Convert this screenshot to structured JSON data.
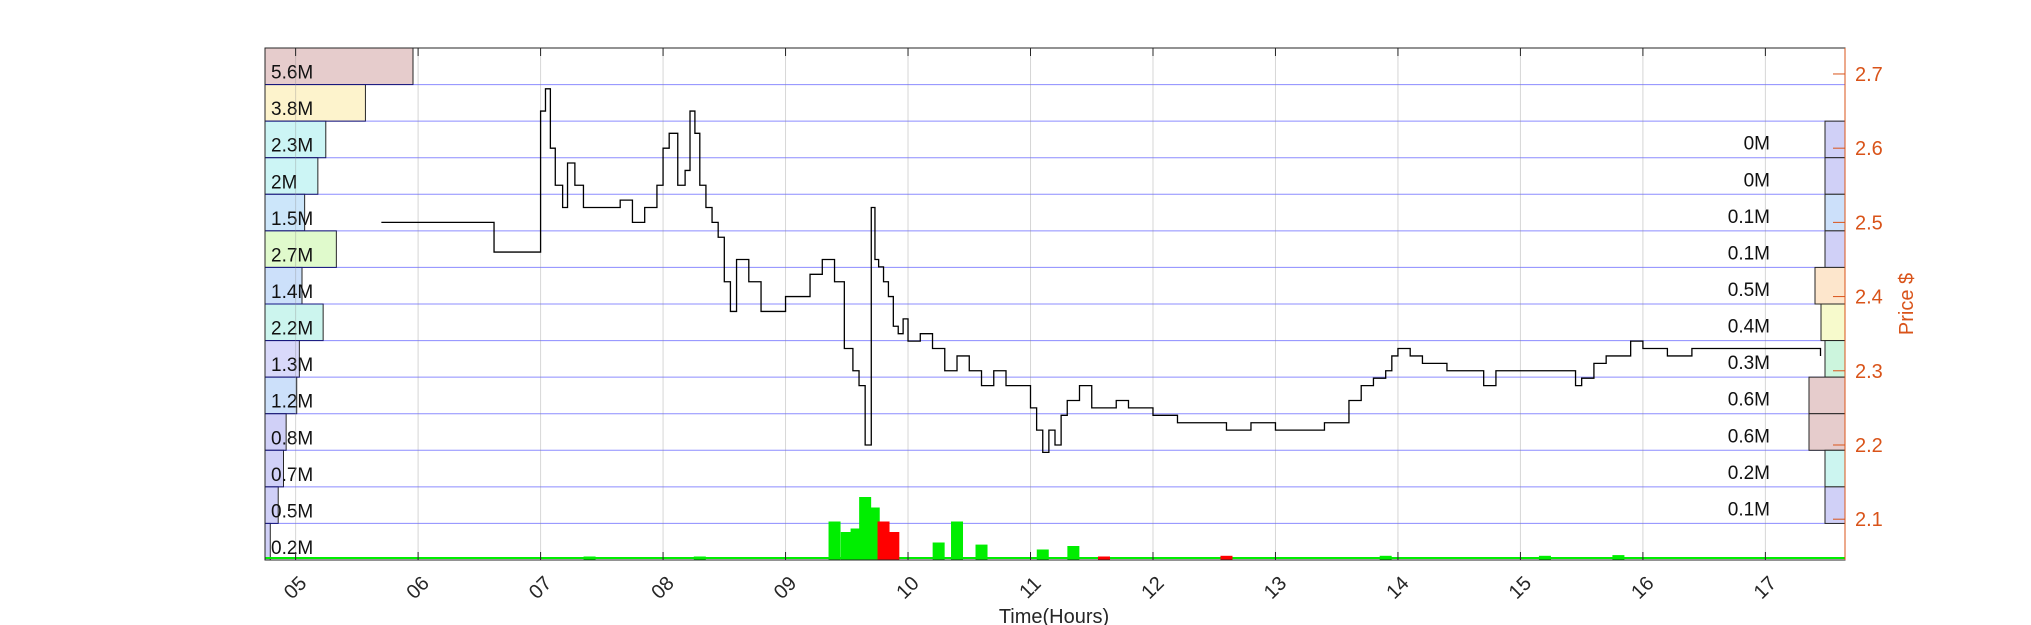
{
  "chart_data": {
    "type": "line",
    "title": "",
    "xlabel": "Time(Hours)",
    "ylabel": "Price $",
    "x_ticks": [
      "05",
      "06",
      "07",
      "08",
      "09",
      "10",
      "11",
      "12",
      "13",
      "14",
      "15",
      "16",
      "17"
    ],
    "y_ticks": [
      "2.1",
      "2.2",
      "2.3",
      "2.4",
      "2.5",
      "2.6",
      "2.7"
    ],
    "xlim": [
      4.75,
      17.65
    ],
    "ylim": [
      2.045,
      2.735
    ],
    "grid": true,
    "colors": {
      "price_line": "#000000",
      "axis_right": "#d95319",
      "grid": "#0000ff",
      "volume_up": "#00ee00",
      "volume_down": "#ff0000"
    },
    "series": [
      {
        "x": [
          5.7,
          5.9,
          6.2,
          6.45,
          6.62,
          6.68,
          6.72,
          6.8,
          6.95,
          7.0,
          7.04,
          7.08,
          7.12,
          7.18,
          7.22,
          7.28,
          7.35,
          7.45,
          7.55,
          7.65,
          7.75,
          7.85,
          7.95,
          8.0,
          8.05,
          8.12,
          8.18,
          8.22,
          8.26,
          8.3,
          8.35,
          8.4,
          8.45,
          8.5,
          8.55,
          8.6,
          8.7,
          8.8,
          8.9,
          9.0,
          9.1,
          9.2,
          9.3,
          9.4,
          9.48,
          9.55,
          9.6,
          9.65,
          9.7,
          9.73,
          9.76,
          9.8,
          9.84,
          9.88,
          9.92,
          9.96,
          10.0,
          10.05,
          10.1,
          10.2,
          10.3,
          10.4,
          10.5,
          10.6,
          10.7,
          10.8,
          10.9,
          11.0,
          11.05,
          11.1,
          11.15,
          11.2,
          11.25,
          11.3,
          11.4,
          11.5,
          11.6,
          11.7,
          11.8,
          11.9,
          12.0,
          12.2,
          12.4,
          12.6,
          12.8,
          13.0,
          13.2,
          13.4,
          13.5,
          13.6,
          13.7,
          13.8,
          13.9,
          13.95,
          14.0,
          14.1,
          14.2,
          14.4,
          14.6,
          14.7,
          14.8,
          15.0,
          15.2,
          15.4,
          15.45,
          15.5,
          15.6,
          15.7,
          15.8,
          15.9,
          16.0,
          16.2,
          16.4,
          16.5,
          16.8,
          17.0,
          17.3,
          17.45
        ],
        "y": [
          2.5,
          2.5,
          2.5,
          2.5,
          2.46,
          2.46,
          2.46,
          2.46,
          2.46,
          2.65,
          2.68,
          2.6,
          2.55,
          2.52,
          2.58,
          2.55,
          2.52,
          2.52,
          2.52,
          2.53,
          2.5,
          2.52,
          2.55,
          2.6,
          2.62,
          2.55,
          2.57,
          2.65,
          2.62,
          2.55,
          2.52,
          2.5,
          2.48,
          2.42,
          2.38,
          2.45,
          2.42,
          2.38,
          2.38,
          2.4,
          2.4,
          2.43,
          2.45,
          2.42,
          2.33,
          2.3,
          2.28,
          2.2,
          2.52,
          2.45,
          2.44,
          2.42,
          2.4,
          2.36,
          2.35,
          2.37,
          2.34,
          2.34,
          2.35,
          2.33,
          2.3,
          2.32,
          2.3,
          2.28,
          2.3,
          2.28,
          2.28,
          2.25,
          2.22,
          2.19,
          2.22,
          2.2,
          2.24,
          2.26,
          2.28,
          2.25,
          2.25,
          2.26,
          2.25,
          2.25,
          2.24,
          2.23,
          2.23,
          2.22,
          2.23,
          2.22,
          2.22,
          2.23,
          2.23,
          2.26,
          2.28,
          2.29,
          2.3,
          2.32,
          2.33,
          2.32,
          2.31,
          2.3,
          2.3,
          2.28,
          2.3,
          2.3,
          2.3,
          2.3,
          2.28,
          2.29,
          2.31,
          2.32,
          2.32,
          2.34,
          2.33,
          2.32,
          2.33,
          2.33,
          2.33,
          2.33,
          2.33,
          2.32
        ]
      }
    ],
    "volume_profile_left": {
      "labels": [
        "5.6M",
        "3.8M",
        "2.3M",
        "2M",
        "1.5M",
        "2.7M",
        "1.4M",
        "2.2M",
        "1.3M",
        "1.2M",
        "0.8M",
        "0.7M",
        "0.5M",
        "0.2M"
      ],
      "values": [
        5.6,
        3.8,
        2.3,
        2.0,
        1.5,
        2.7,
        1.4,
        2.2,
        1.3,
        1.2,
        0.8,
        0.7,
        0.5,
        0.2
      ],
      "colors": [
        "#e6cccc",
        "#fdf3cc",
        "#ccf5f5",
        "#ccf5f5",
        "#cce6fa",
        "#e0facc",
        "#cce0fa",
        "#ccf5ee",
        "#d9d9fa",
        "#cce0fa",
        "#d0d0f7",
        "#d0d0f7",
        "#d0d0f7",
        "#d0d0f7"
      ]
    },
    "volume_profile_right": {
      "labels": [
        "0M",
        "0M",
        "0.1M",
        "0.1M",
        "0.5M",
        "0.4M",
        "0.3M",
        "0.6M",
        "0.6M",
        "0.2M",
        "0.1M"
      ],
      "values": [
        0.02,
        0.02,
        0.1,
        0.1,
        0.5,
        0.4,
        0.3,
        0.6,
        0.6,
        0.2,
        0.1
      ],
      "colors": [
        "#d0d0f7",
        "#d0d0f7",
        "#cce0fa",
        "#d0d0f7",
        "#fde6cc",
        "#f7facc",
        "#ccf5dd",
        "#e6cccc",
        "#e6cccc",
        "#ccf5f0",
        "#d0d0f7"
      ]
    },
    "volume_bars": [
      {
        "x": 9.4,
        "v": 0.55,
        "dir": "up"
      },
      {
        "x": 9.5,
        "v": 0.4,
        "dir": "up"
      },
      {
        "x": 9.58,
        "v": 0.45,
        "dir": "up"
      },
      {
        "x": 9.65,
        "v": 0.9,
        "dir": "up"
      },
      {
        "x": 9.72,
        "v": 0.75,
        "dir": "up"
      },
      {
        "x": 9.8,
        "v": 0.55,
        "dir": "down"
      },
      {
        "x": 9.88,
        "v": 0.4,
        "dir": "down"
      },
      {
        "x": 10.25,
        "v": 0.25,
        "dir": "up"
      },
      {
        "x": 10.4,
        "v": 0.55,
        "dir": "up"
      },
      {
        "x": 10.6,
        "v": 0.22,
        "dir": "up"
      },
      {
        "x": 11.1,
        "v": 0.15,
        "dir": "up"
      },
      {
        "x": 11.35,
        "v": 0.2,
        "dir": "up"
      },
      {
        "x": 11.6,
        "v": 0.05,
        "dir": "down"
      },
      {
        "x": 12.6,
        "v": 0.06,
        "dir": "down"
      },
      {
        "x": 7.4,
        "v": 0.05,
        "dir": "up"
      },
      {
        "x": 8.3,
        "v": 0.05,
        "dir": "up"
      },
      {
        "x": 13.9,
        "v": 0.06,
        "dir": "up"
      },
      {
        "x": 15.2,
        "v": 0.06,
        "dir": "up"
      },
      {
        "x": 15.8,
        "v": 0.07,
        "dir": "up"
      }
    ]
  }
}
